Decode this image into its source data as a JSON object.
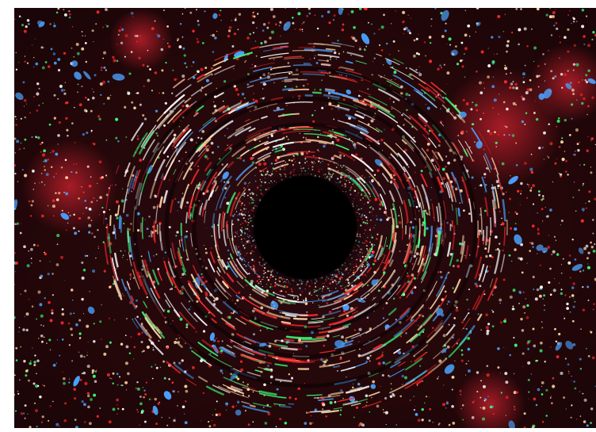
{
  "image": {
    "subject": "black-hole-lensing-starfield",
    "colors": {
      "background": "#1a0508",
      "star_warm": "#ffd9a8",
      "star_white": "#ffffff",
      "star_red": "#ff2a2a",
      "star_blue": "#4aa3ff",
      "star_green": "#3cff7a",
      "center": "#000000"
    }
  }
}
